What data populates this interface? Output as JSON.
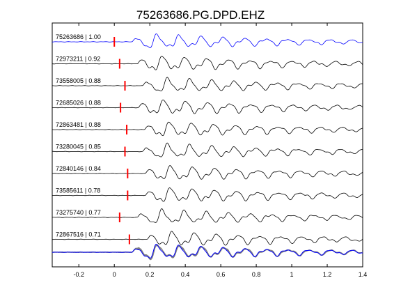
{
  "chart_data": {
    "type": "line",
    "title": "75263686.PG.DPD.EHZ",
    "xlabel": "",
    "ylabel": "",
    "xlim": [
      -0.35,
      1.4
    ],
    "x_ticks": [
      -0.2,
      0,
      0.2,
      0.4,
      0.6,
      0.8,
      1,
      1.2,
      1.4
    ],
    "x_tick_labels": [
      "-0.2",
      "0",
      "0.2",
      "0.4",
      "0.6",
      "0.8",
      "1",
      "1.2",
      "1.4"
    ],
    "grid": false,
    "legend": "none",
    "colors": {
      "template": "#0000ff",
      "match": "#000000",
      "pick": "#ff0000",
      "stack": "#808080",
      "axes": "#000000"
    },
    "series": [
      {
        "name": "75263686 | 1.00",
        "pick": 0.0
      },
      {
        "name": "72973211 | 0.92",
        "pick": 0.03
      },
      {
        "name": "73558005 | 0.88",
        "pick": 0.06
      },
      {
        "name": "72685026 | 0.88",
        "pick": 0.035
      },
      {
        "name": "72863481 | 0.88",
        "pick": 0.07
      },
      {
        "name": "73280045 | 0.85",
        "pick": 0.06
      },
      {
        "name": "72840146 | 0.84",
        "pick": 0.075
      },
      {
        "name": "73585611 | 0.78",
        "pick": 0.075
      },
      {
        "name": "73275740 | 0.77",
        "pick": 0.03
      },
      {
        "name": "72867516 | 0.71",
        "pick": 0.085
      }
    ]
  }
}
